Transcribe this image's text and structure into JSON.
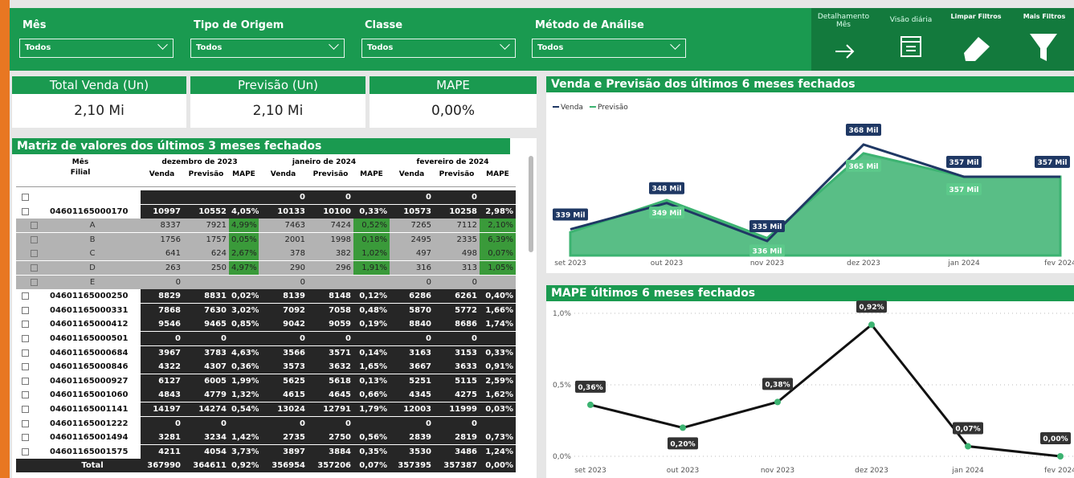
{
  "filters": [
    {
      "label": "Mês",
      "value": "Todos"
    },
    {
      "label": "Tipo de Origem",
      "value": "Todos"
    },
    {
      "label": "Classe",
      "value": "Todos"
    },
    {
      "label": "Método de Análise",
      "value": "Todos"
    }
  ],
  "buttons": [
    "Detalhamento Mês",
    "Visão diária",
    "Limpar Filtros",
    "Mais Filtros"
  ],
  "cards": [
    {
      "title": "Total Venda (Un)",
      "value": "2,10 Mi"
    },
    {
      "title": "Previsão (Un)",
      "value": "2,10 Mi"
    },
    {
      "title": "MAPE",
      "value": "0,00%"
    }
  ],
  "matrix": {
    "title": "Matriz de valores dos últimos 3 meses fechados",
    "row_header": [
      "Mês",
      "Filial"
    ],
    "months": [
      "dezembro de 2023",
      "janeiro de 2024",
      "fevereiro de 2024"
    ],
    "measures": [
      "Venda",
      "Previsão",
      "MAPE"
    ],
    "rows": [
      {
        "name": null,
        "cells": [
          null,
          null,
          null,
          "0",
          "0",
          null,
          "0",
          "0",
          null
        ]
      },
      {
        "name": "04601165000170",
        "cells": [
          "10997",
          "10552",
          "4,05%",
          "10133",
          "10100",
          "0,33%",
          "10573",
          "10258",
          "2,98%"
        ]
      },
      {
        "name": "A",
        "cells": [
          "8337",
          "7921",
          "4,99%",
          "7463",
          "7424",
          "0,52%",
          "7265",
          "7112",
          "2,10%"
        ]
      },
      {
        "name": "B",
        "cells": [
          "1756",
          "1757",
          "0,05%",
          "2001",
          "1998",
          "0,18%",
          "2495",
          "2335",
          "6,39%"
        ]
      },
      {
        "name": "C",
        "cells": [
          "641",
          "624",
          "2,67%",
          "378",
          "382",
          "1,02%",
          "497",
          "498",
          "0,07%"
        ]
      },
      {
        "name": "D",
        "cells": [
          "263",
          "250",
          "4,97%",
          "290",
          "296",
          "1,91%",
          "316",
          "313",
          "1,05%"
        ]
      },
      {
        "name": "E",
        "cells": [
          "0",
          null,
          null,
          "0",
          null,
          null,
          "0",
          "0",
          null
        ]
      },
      {
        "name": "04601165000250",
        "cells": [
          "8829",
          "8831",
          "0,02%",
          "8139",
          "8148",
          "0,12%",
          "6286",
          "6261",
          "0,40%"
        ]
      },
      {
        "name": "04601165000331",
        "cells": [
          "7868",
          "7630",
          "3,02%",
          "7092",
          "7058",
          "0,48%",
          "5870",
          "5772",
          "1,66%"
        ]
      },
      {
        "name": "04601165000412",
        "cells": [
          "9546",
          "9465",
          "0,85%",
          "9042",
          "9059",
          "0,19%",
          "8840",
          "8686",
          "1,74%"
        ]
      },
      {
        "name": "04601165000501",
        "cells": [
          "0",
          "0",
          null,
          "0",
          "0",
          null,
          "0",
          "0",
          null
        ]
      },
      {
        "name": "04601165000684",
        "cells": [
          "3967",
          "3783",
          "4,63%",
          "3566",
          "3571",
          "0,14%",
          "3163",
          "3153",
          "0,33%"
        ]
      },
      {
        "name": "04601165000846",
        "cells": [
          "4322",
          "4307",
          "0,36%",
          "3573",
          "3632",
          "1,65%",
          "3667",
          "3633",
          "0,91%"
        ]
      },
      {
        "name": "04601165000927",
        "cells": [
          "6127",
          "6005",
          "1,99%",
          "5625",
          "5618",
          "0,13%",
          "5251",
          "5115",
          "2,59%"
        ]
      },
      {
        "name": "04601165001060",
        "cells": [
          "4843",
          "4779",
          "1,32%",
          "4615",
          "4645",
          "0,66%",
          "4345",
          "4275",
          "1,62%"
        ]
      },
      {
        "name": "04601165001141",
        "cells": [
          "14197",
          "14274",
          "0,54%",
          "13024",
          "12791",
          "1,79%",
          "12003",
          "11999",
          "0,03%"
        ]
      },
      {
        "name": "04601165001222",
        "cells": [
          "0",
          "0",
          null,
          "0",
          "0",
          null,
          "0",
          "0",
          null
        ]
      },
      {
        "name": "04601165001494",
        "cells": [
          "3281",
          "3234",
          "1,42%",
          "2735",
          "2750",
          "0,56%",
          "2839",
          "2819",
          "0,73%"
        ]
      },
      {
        "name": "04601165001575",
        "cells": [
          "4211",
          "4054",
          "3,73%",
          "3897",
          "3884",
          "0,35%",
          "3530",
          "3486",
          "1,24%"
        ]
      },
      {
        "name": "Total",
        "cells": [
          "367990",
          "364611",
          "0,92%",
          "356954",
          "357206",
          "0,07%",
          "357395",
          "357387",
          "0,00%"
        ]
      }
    ]
  },
  "chart_data": [
    {
      "type": "area",
      "title": "Venda e Previsão dos últimos 6 meses fechados",
      "categories": [
        "set 2023",
        "out 2023",
        "nov 2023",
        "dez 2023",
        "jan 2024",
        "fev 2024"
      ],
      "series": [
        {
          "name": "Venda",
          "color": "#1f3864",
          "values": [
            339,
            348,
            335,
            368,
            357,
            357
          ],
          "value_labels": [
            "339 Mil",
            "348 Mil",
            "335 Mil",
            "368 Mil",
            "357 Mil",
            "357 Mil"
          ]
        },
        {
          "name": "Previsão",
          "color": "#3cb371",
          "values": [
            338,
            349,
            336,
            365,
            357,
            357
          ],
          "value_labels": [
            null,
            "349 Mil",
            "336 Mil",
            "365 Mil",
            "357 Mil",
            null
          ]
        }
      ],
      "legend": "top-left"
    },
    {
      "type": "line",
      "title": "MAPE últimos 6 meses fechados",
      "categories": [
        "set 2023",
        "out 2023",
        "nov 2023",
        "dez 2023",
        "jan 2024",
        "fev 2024"
      ],
      "values": [
        0.36,
        0.2,
        0.38,
        0.92,
        0.07,
        0.0
      ],
      "value_labels": [
        "0,36%",
        "0,20%",
        "0,38%",
        "0,92%",
        "0,07%",
        "0,00%"
      ],
      "color": "#111111",
      "marker_color": "#3cb371",
      "ylim": [
        0,
        1
      ],
      "yticks": [
        {
          "value": 0,
          "label": "0,0%"
        },
        {
          "value": 0.5,
          "label": "0,5%"
        },
        {
          "value": 1,
          "label": "1,0%"
        }
      ],
      "grid": true
    }
  ]
}
